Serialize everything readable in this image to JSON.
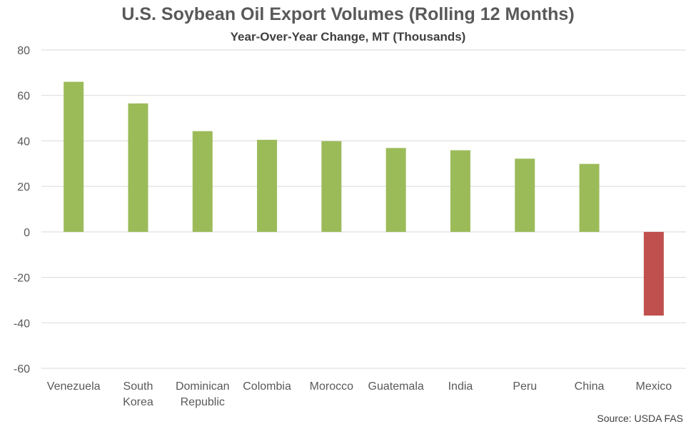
{
  "chart_data": {
    "type": "bar",
    "title": "U.S. Soybean Oil Export Volumes (Rolling 12 Months)",
    "subtitle": "Year-Over-Year Change, MT (Thousands)",
    "categories": [
      "Venezuela",
      "South Korea",
      "Dominican Republic",
      "Colombia",
      "Morocco",
      "Guatemala",
      "India",
      "Peru",
      "China",
      "Mexico"
    ],
    "category_lines": [
      [
        "Venezuela"
      ],
      [
        "South",
        "Korea"
      ],
      [
        "Dominican",
        "Republic"
      ],
      [
        "Colombia"
      ],
      [
        "Morocco"
      ],
      [
        "Guatemala"
      ],
      [
        "India"
      ],
      [
        "Peru"
      ],
      [
        "China"
      ],
      [
        "Mexico"
      ]
    ],
    "values": [
      66,
      56.5,
      44.3,
      40.5,
      39.9,
      36.9,
      35.9,
      32.2,
      29.9,
      -36.8
    ],
    "ylim": [
      -60,
      80
    ],
    "yticks": [
      80,
      60,
      40,
      20,
      0,
      -20,
      -40,
      -60
    ],
    "grid": true,
    "colors": {
      "positive": "#9bbb59",
      "negative": "#c0504d",
      "grid": "#d9d9d9",
      "text": "#595959"
    },
    "source": "Source: USDA FAS"
  }
}
